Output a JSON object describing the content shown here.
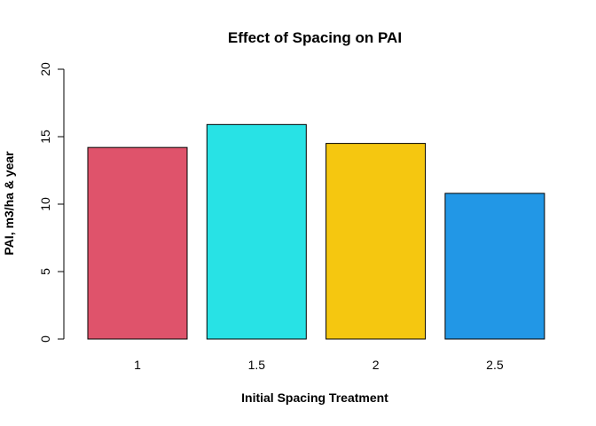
{
  "chart_data": {
    "type": "bar",
    "title": "Effect of Spacing on PAI",
    "xlabel": "Initial Spacing Treatment",
    "ylabel": "PAI, m3/ha & year",
    "categories": [
      "1",
      "1.5",
      "2",
      "2.5"
    ],
    "values": [
      14.2,
      15.9,
      14.5,
      10.8
    ],
    "colors": [
      "#DF536B",
      "#28E2E5",
      "#F5C710",
      "#2297E6"
    ],
    "ylim": [
      0,
      20
    ],
    "yticks": [
      0,
      5,
      10,
      15,
      20
    ],
    "grid": false,
    "legend": "none"
  }
}
